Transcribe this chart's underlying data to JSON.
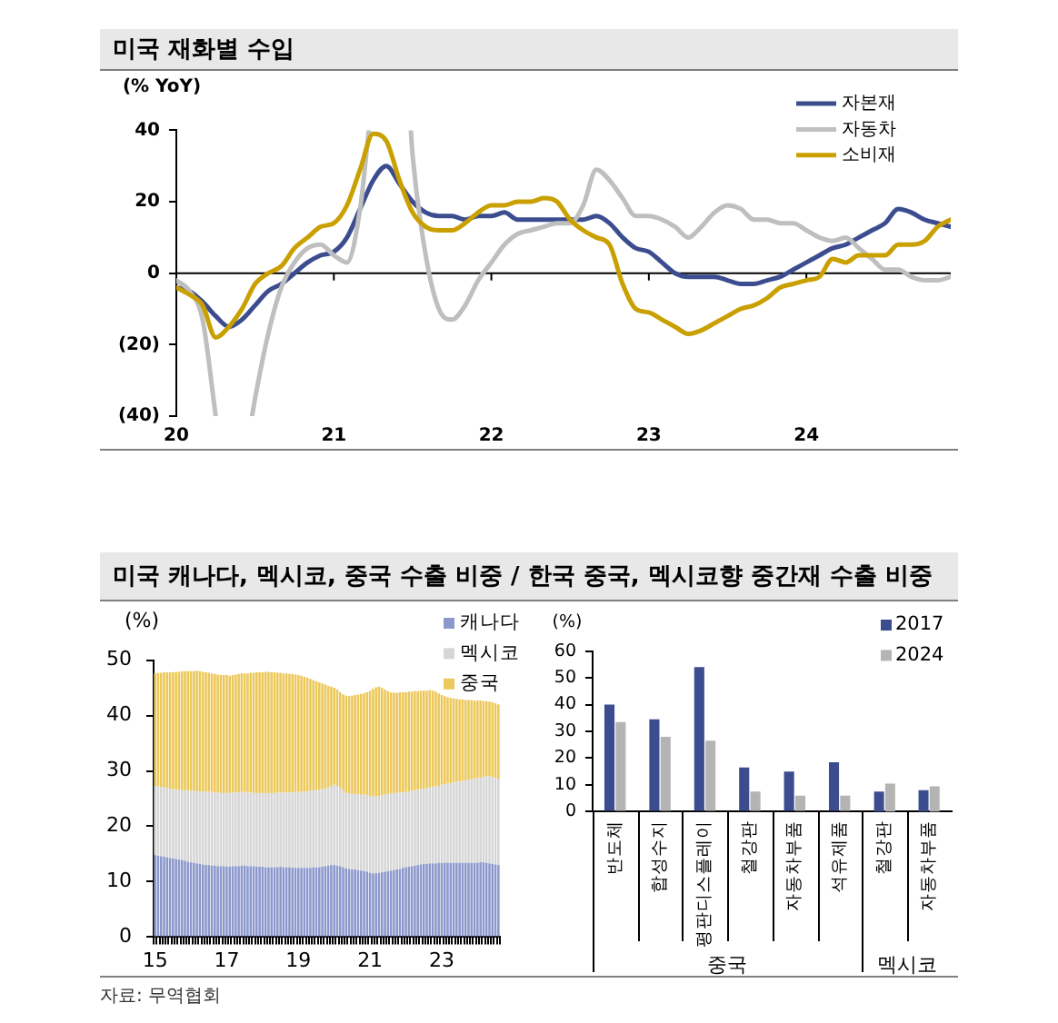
{
  "chart_data": [
    {
      "type": "line",
      "title": "미국 재화별 수입",
      "ylabel": "(% YoY)",
      "legend": "top right",
      "x": [
        "2020-01",
        "2020-02",
        "2020-03",
        "2020-04",
        "2020-05",
        "2020-06",
        "2020-07",
        "2020-08",
        "2020-09",
        "2020-10",
        "2020-11",
        "2020-12",
        "2021-01",
        "2021-02",
        "2021-03",
        "2021-04",
        "2021-05",
        "2021-06",
        "2021-07",
        "2021-08",
        "2021-09",
        "2021-10",
        "2021-11",
        "2021-12",
        "2022-01",
        "2022-02",
        "2022-03",
        "2022-04",
        "2022-05",
        "2022-06",
        "2022-07",
        "2022-08",
        "2022-09",
        "2022-10",
        "2022-11",
        "2022-12",
        "2023-01",
        "2023-02",
        "2023-03",
        "2023-04",
        "2023-05",
        "2023-06",
        "2023-07",
        "2023-08",
        "2023-09",
        "2023-10",
        "2023-11",
        "2023-12",
        "2024-01",
        "2024-02",
        "2024-03",
        "2024-04",
        "2024-05",
        "2024-06",
        "2024-07",
        "2024-08",
        "2024-09",
        "2024-10",
        "2024-11",
        "2024-12"
      ],
      "xlim": [
        "2020-01",
        "2024-12"
      ],
      "xticks": [
        {
          "value": "2020",
          "label": "20"
        },
        {
          "value": "2021",
          "label": "21"
        },
        {
          "value": "2022",
          "label": "22"
        },
        {
          "value": "2023",
          "label": "23"
        },
        {
          "value": "2024",
          "label": "24"
        }
      ],
      "ylim": [
        -40,
        40
      ],
      "yticks": [
        {
          "value": -40,
          "label": "(40)"
        },
        {
          "value": -20,
          "label": "(20)"
        },
        0,
        20,
        40
      ],
      "ref_lines": [
        {
          "axis": "y",
          "value": 0,
          "color": "#000000"
        }
      ],
      "series": [
        {
          "name": "자본재",
          "color": "#3c4d8f",
          "values": [
            -4,
            -5,
            -8,
            -12,
            -15,
            -13,
            -9,
            -5,
            -3,
            0,
            3,
            5,
            6,
            10,
            18,
            26,
            30,
            25,
            20,
            17,
            16,
            16,
            15,
            16,
            16,
            17,
            15,
            15,
            15,
            15,
            15,
            15,
            16,
            14,
            10,
            7,
            6,
            3,
            0,
            -1,
            -1,
            -1,
            -2,
            -3,
            -3,
            -2,
            -1,
            1,
            3,
            5,
            7,
            8,
            10,
            12,
            14,
            18,
            17,
            15,
            14,
            13
          ]
        },
        {
          "name": "자동차",
          "color": "#bfbfbf",
          "x": [
            "2020-01",
            "2020-02",
            "2020-03",
            "2020-04",
            "2020-05",
            "2020-06-24",
            "2020-07",
            "2020-08",
            "2020-09",
            "2020-10",
            "2020-11",
            "2020-12",
            "2021-01",
            "2021-02",
            "2021-03",
            "2021-03-21",
            "2021-05",
            "2021-06-27",
            "2021-07",
            "2021-08",
            "2021-09",
            "2021-10",
            "2021-11",
            "2021-12",
            "2022-01",
            "2022-02",
            "2022-03",
            "2022-04",
            "2022-05",
            "2022-06",
            "2022-07",
            "2022-08",
            "2022-09",
            "2022-10",
            "2022-11",
            "2022-12",
            "2023-01",
            "2023-02",
            "2023-03",
            "2023-04",
            "2023-05",
            "2023-06",
            "2023-07",
            "2023-08",
            "2023-09",
            "2023-10",
            "2023-11",
            "2023-12",
            "2024-01",
            "2024-02",
            "2024-03",
            "2024-04",
            "2024-05",
            "2024-06",
            "2024-07",
            "2024-08",
            "2024-09",
            "2024-10",
            "2024-11",
            "2024-12"
          ],
          "values": [
            -2,
            -5,
            -13,
            -40,
            null,
            -40,
            -35,
            -17,
            -4,
            3,
            7,
            8,
            5,
            3,
            18,
            40,
            null,
            40,
            33,
            5,
            -10,
            -13,
            -9,
            -2,
            3,
            8,
            11,
            12,
            13,
            14,
            14,
            19,
            29,
            26,
            21,
            16,
            16,
            15,
            13,
            10,
            13,
            17,
            19,
            18,
            15,
            15,
            14,
            14,
            12,
            10,
            9,
            10,
            7,
            4,
            1,
            1,
            -1,
            -2,
            -2,
            -1
          ]
        },
        {
          "name": "소비재",
          "color": "#c9a000",
          "values": [
            -4,
            -6,
            -9,
            -18,
            -15,
            -10,
            -3,
            0,
            2,
            7,
            10,
            13,
            14,
            19,
            29,
            39,
            37,
            26,
            17,
            13,
            12,
            12,
            14,
            17,
            19,
            19,
            20,
            20,
            21,
            20,
            15,
            12,
            10,
            8,
            -3,
            -10,
            -11,
            -13,
            -15,
            -17,
            -16,
            -14,
            -12,
            -10,
            -9,
            -7,
            -4,
            -3,
            -2,
            -1,
            4,
            3,
            5,
            5,
            5,
            8,
            8,
            9,
            13,
            15
          ]
        }
      ]
    },
    {
      "type": "bar",
      "stacked": true,
      "title": "미국 캐나다, 멕시코, 중국 수출 비중 / 한국 중국, 멕시코향 중간재 수출 비중",
      "ylabel": "(%)",
      "legend": "top right",
      "annotations": [
        "자료: 무역협회"
      ],
      "categories": [
        "15",
        null,
        null,
        null,
        null,
        null,
        null,
        null,
        null,
        null,
        null,
        null,
        null,
        null,
        null,
        null,
        null,
        null,
        null,
        null,
        null,
        null,
        null,
        null,
        "17",
        null,
        null,
        null,
        null,
        null,
        null,
        null,
        null,
        null,
        null,
        null,
        null,
        null,
        null,
        null,
        null,
        null,
        null,
        null,
        null,
        null,
        null,
        null,
        "19",
        null,
        null,
        null,
        null,
        null,
        null,
        null,
        null,
        null,
        null,
        null,
        null,
        null,
        null,
        null,
        null,
        null,
        null,
        null,
        null,
        null,
        null,
        null,
        "21",
        null,
        null,
        null,
        null,
        null,
        null,
        null,
        null,
        null,
        null,
        null,
        null,
        null,
        null,
        null,
        null,
        null,
        null,
        null,
        null,
        null,
        null,
        null,
        "23",
        null,
        null,
        null,
        null,
        null,
        null,
        null,
        null,
        null,
        null,
        null,
        null,
        null,
        null,
        null,
        null,
        null,
        null,
        null
      ],
      "ylim": [
        0,
        50
      ],
      "yticks": [
        0,
        10,
        20,
        30,
        40,
        50
      ],
      "series": [
        {
          "name": "캐나다",
          "color": "#8c98cc",
          "values": [
            14.8,
            14.7,
            14.6,
            14.5,
            14.4,
            14.3,
            14.2,
            14.1,
            14.0,
            13.9,
            13.8,
            13.6,
            13.5,
            13.4,
            13.3,
            13.2,
            13.1,
            13.0,
            13.0,
            12.9,
            12.9,
            12.8,
            12.8,
            12.8,
            12.7,
            12.7,
            12.8,
            12.8,
            12.8,
            12.9,
            12.9,
            12.8,
            12.8,
            12.8,
            12.7,
            12.7,
            12.7,
            12.6,
            12.6,
            12.6,
            12.6,
            12.6,
            12.7,
            12.6,
            12.6,
            12.6,
            12.5,
            12.5,
            12.5,
            12.5,
            12.5,
            12.5,
            12.5,
            12.6,
            12.6,
            12.6,
            12.7,
            12.8,
            12.9,
            13.0,
            13.0,
            12.9,
            12.8,
            12.6,
            12.4,
            12.3,
            12.2,
            12.2,
            12.1,
            12.0,
            11.9,
            11.8,
            11.6,
            11.5,
            11.5,
            11.6,
            11.7,
            11.8,
            11.9,
            12.0,
            12.1,
            12.2,
            12.3,
            12.5,
            12.6,
            12.7,
            12.8,
            12.9,
            13.0,
            13.1,
            13.2,
            13.2,
            13.3,
            13.3,
            13.3,
            13.4,
            13.4,
            13.4,
            13.4,
            13.4,
            13.4,
            13.4,
            13.4,
            13.4,
            13.4,
            13.4,
            13.4,
            13.4,
            13.4,
            13.5,
            13.5,
            13.4,
            13.3,
            13.2,
            13.1,
            13.0
          ]
        },
        {
          "name": "멕시코",
          "color": "#d6d6d6",
          "values": [
            12.5,
            12.5,
            12.5,
            12.5,
            12.5,
            12.5,
            12.5,
            12.5,
            12.6,
            12.6,
            12.7,
            12.8,
            12.9,
            13.0,
            13.0,
            13.1,
            13.2,
            13.2,
            13.2,
            13.3,
            13.2,
            13.3,
            13.2,
            13.2,
            13.3,
            13.3,
            13.3,
            13.3,
            13.3,
            13.3,
            13.3,
            13.3,
            13.3,
            13.2,
            13.3,
            13.3,
            13.3,
            13.4,
            13.4,
            13.4,
            13.4,
            13.5,
            13.4,
            13.5,
            13.5,
            13.5,
            13.6,
            13.7,
            13.7,
            13.7,
            13.8,
            13.8,
            13.9,
            13.9,
            13.9,
            14.0,
            14.0,
            14.0,
            14.1,
            14.2,
            14.5,
            14.4,
            14.2,
            13.9,
            13.6,
            13.6,
            13.6,
            13.6,
            13.7,
            13.7,
            13.8,
            13.8,
            13.9,
            13.9,
            13.9,
            13.9,
            13.9,
            13.9,
            13.9,
            13.9,
            13.9,
            13.8,
            13.8,
            13.6,
            13.6,
            13.6,
            13.6,
            13.6,
            13.6,
            13.6,
            13.6,
            13.7,
            13.7,
            13.8,
            13.9,
            13.9,
            14.1,
            14.2,
            14.3,
            14.4,
            14.5,
            14.6,
            14.7,
            14.8,
            14.9,
            15.0,
            15.1,
            15.2,
            15.3,
            15.3,
            15.4,
            15.6,
            15.7,
            15.7,
            15.6,
            15.5
          ]
        },
        {
          "name": "중국",
          "color": "#ecc85a",
          "values": [
            20.3,
            20.5,
            20.6,
            20.8,
            20.9,
            21.0,
            21.1,
            21.3,
            21.3,
            21.5,
            21.5,
            21.6,
            21.6,
            21.6,
            21.8,
            21.7,
            21.6,
            21.6,
            21.5,
            21.4,
            21.4,
            21.3,
            21.3,
            21.3,
            21.3,
            21.2,
            21.2,
            21.3,
            21.4,
            21.4,
            21.4,
            21.5,
            21.6,
            21.7,
            21.8,
            21.8,
            21.8,
            21.9,
            21.9,
            21.8,
            21.8,
            21.6,
            21.6,
            21.5,
            21.5,
            21.4,
            21.4,
            21.2,
            21.1,
            21.0,
            20.7,
            20.5,
            20.2,
            19.9,
            19.7,
            19.4,
            19.1,
            18.8,
            18.4,
            18.0,
            17.5,
            17.4,
            17.2,
            17.3,
            17.6,
            17.6,
            17.8,
            17.9,
            18.0,
            18.2,
            18.3,
            18.6,
            19.0,
            19.4,
            19.7,
            19.7,
            19.4,
            19.0,
            18.6,
            18.3,
            18.1,
            18.1,
            18.1,
            18.1,
            18.0,
            18.0,
            17.9,
            17.9,
            17.8,
            17.8,
            17.7,
            17.6,
            17.6,
            17.4,
            17.1,
            16.7,
            16.2,
            15.9,
            15.6,
            15.4,
            15.2,
            15.0,
            14.8,
            14.7,
            14.5,
            14.4,
            14.3,
            14.1,
            14.0,
            13.9,
            13.7,
            13.6,
            13.5,
            13.5,
            13.5,
            13.5
          ]
        }
      ]
    },
    {
      "type": "bar",
      "ylabel": "(%)",
      "xlabel": "중국",
      "categories": [
        "반도체",
        "합성수지",
        "평판디스플레이",
        "철강판",
        "자동차부품",
        "석유제품"
      ],
      "ylim": [
        0,
        60
      ],
      "yticks": [
        0,
        10,
        20,
        30,
        40,
        50,
        60
      ],
      "series": [
        {
          "color": "#3c4d8f",
          "values": [
            40,
            34.5,
            54,
            16.5,
            15,
            18.5
          ]
        },
        {
          "color": "#b4b4b4",
          "values": [
            33.5,
            28,
            26.5,
            7.5,
            6,
            6
          ]
        }
      ]
    },
    {
      "type": "bar",
      "xlabel": "멕시코",
      "categories": [
        "철강판",
        "자동차부품"
      ],
      "ylim": [
        0,
        60
      ],
      "tick_labels": "x",
      "legend": "top",
      "series": [
        {
          "name": "2017",
          "color": "#3c4d8f",
          "values": [
            7.5,
            8
          ]
        },
        {
          "name": "2024",
          "color": "#b4b4b4",
          "values": [
            10.5,
            9.5
          ]
        }
      ]
    }
  ]
}
